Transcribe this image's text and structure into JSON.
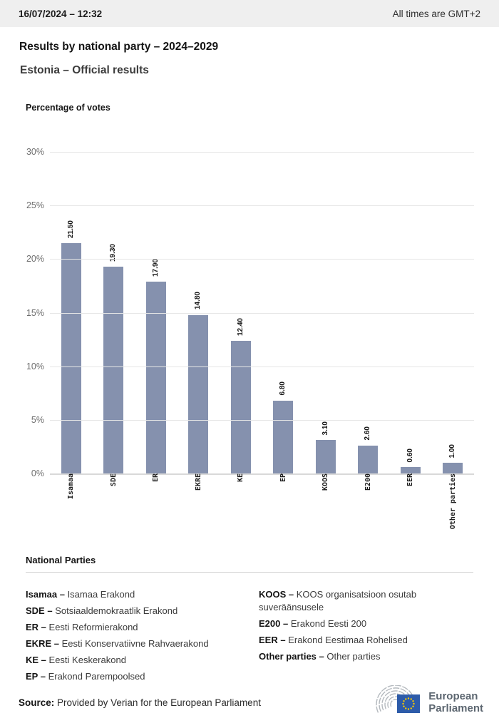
{
  "header": {
    "datetime": "16/07/2024 – 12:32",
    "timezone_note": "All times are GMT+2"
  },
  "title": "Results by national party – 2024–2029",
  "subtitle": "Estonia – Official results",
  "chart_data": {
    "type": "bar",
    "title": "Percentage of votes",
    "categories": [
      "Isamaa",
      "SDE",
      "ER",
      "EKRE",
      "KE",
      "EP",
      "KOOS",
      "E200",
      "EER",
      "Other parties"
    ],
    "values": [
      21.5,
      19.3,
      17.9,
      14.8,
      12.4,
      6.8,
      3.1,
      2.6,
      0.6,
      1.0
    ],
    "value_labels": [
      "21.50",
      "19.30",
      "17.90",
      "14.80",
      "12.40",
      "6.80",
      "3.10",
      "2.60",
      "0.60",
      "1.00"
    ],
    "ylabel": "Percentage of votes",
    "xlabel": "",
    "ylim": [
      0,
      30
    ],
    "yticks": [
      "30%",
      "25%",
      "20%",
      "15%",
      "10%",
      "5%",
      "0%"
    ],
    "grid": true,
    "legend_position": "none",
    "bar_color": "#8591ae"
  },
  "legend": {
    "title": "National Parties",
    "columns": [
      [
        {
          "term": "Isamaa –",
          "desc": "Isamaa Erakond"
        },
        {
          "term": "SDE –",
          "desc": "Sotsiaaldemokraatlik Erakond"
        },
        {
          "term": "ER –",
          "desc": "Eesti Reformierakond"
        },
        {
          "term": "EKRE –",
          "desc": "Eesti Konservatiivne Rahvaerakond"
        },
        {
          "term": "KE –",
          "desc": "Eesti Keskerakond"
        },
        {
          "term": "EP –",
          "desc": "Erakond Parempoolsed"
        }
      ],
      [
        {
          "term": "KOOS –",
          "desc": "KOOS organisatsioon osutab suveräänsusele"
        },
        {
          "term": "E200 –",
          "desc": "Erakond Eesti 200"
        },
        {
          "term": "EER –",
          "desc": "Erakond Eestimaa Rohelised"
        },
        {
          "term": "Other parties –",
          "desc": "Other parties"
        }
      ]
    ]
  },
  "footer": {
    "source_label": "Source:",
    "source_text": "Provided by Verian for the European Parliament",
    "logo_line1": "European",
    "logo_line2": "Parliament",
    "logo_colors": {
      "flag_blue": "#2d5ba9",
      "star_yellow": "#f7c900",
      "arc_gray": "#b4b9be",
      "text_gray": "#5c6670"
    }
  }
}
